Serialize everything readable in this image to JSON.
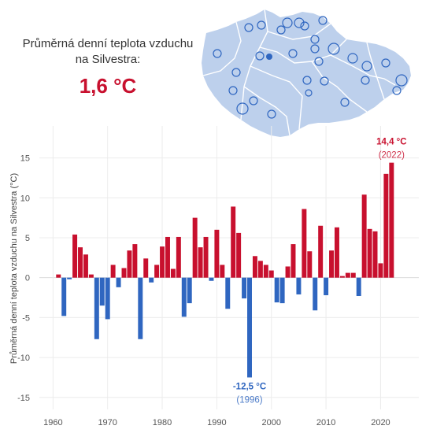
{
  "headline": {
    "line1": "Průměrná denní teplota vzduchu",
    "line2": "na Silvestra:",
    "value": "1,6 °C"
  },
  "colors": {
    "warm": "#c8102e",
    "cold": "#2f66c0",
    "highlight_warm": "#c8102e",
    "highlight_cold": "#2f66c0",
    "map_fill": "#bdd0ec",
    "map_border": "#ffffff",
    "station_stroke": "#2f66c0"
  },
  "chart_data": {
    "type": "bar",
    "ylabel": "Průměrná denní teplota vzduchu na Silvestra (°C)",
    "xlabel": "",
    "ylim": [
      -16.5,
      19
    ],
    "xlim": [
      1957.5,
      2027
    ],
    "x_ticks": [
      1960,
      1970,
      1980,
      1990,
      2000,
      2010,
      2020
    ],
    "x_tick_labels": [
      "1960",
      "1970",
      "1980",
      "1990",
      "2000",
      "2010",
      "2020"
    ],
    "y_ticks": [
      15,
      10,
      5,
      0,
      -5,
      -10,
      -15
    ],
    "y_tick_labels": [
      "15",
      "10",
      "5",
      "0",
      "-5",
      "-10",
      "-15"
    ],
    "grid": true,
    "years": [
      1961,
      1962,
      1963,
      1964,
      1965,
      1966,
      1967,
      1968,
      1969,
      1970,
      1971,
      1972,
      1973,
      1974,
      1975,
      1976,
      1977,
      1978,
      1979,
      1980,
      1981,
      1982,
      1983,
      1984,
      1985,
      1986,
      1987,
      1988,
      1989,
      1990,
      1991,
      1992,
      1993,
      1994,
      1995,
      1996,
      1997,
      1998,
      1999,
      2000,
      2001,
      2002,
      2003,
      2004,
      2005,
      2006,
      2007,
      2008,
      2009,
      2010,
      2011,
      2012,
      2013,
      2014,
      2015,
      2016,
      2017,
      2018,
      2019,
      2020,
      2021,
      2022
    ],
    "values": [
      0.4,
      -4.8,
      -0.2,
      5.4,
      3.8,
      2.9,
      0.4,
      -7.7,
      -3.5,
      -5.2,
      1.6,
      -1.2,
      1.2,
      3.4,
      4.2,
      -7.7,
      2.4,
      -0.6,
      1.6,
      3.9,
      5.1,
      1.1,
      5.1,
      -4.9,
      -3.2,
      7.5,
      3.8,
      5.1,
      -0.4,
      6.0,
      1.6,
      -3.9,
      8.9,
      5.6,
      -2.6,
      -12.5,
      2.7,
      2.1,
      1.6,
      0.9,
      -3.1,
      -3.2,
      1.4,
      4.2,
      -2.1,
      8.6,
      3.3,
      -4.1,
      6.5,
      -2.2,
      3.4,
      6.3,
      0.2,
      0.6,
      0.6,
      -2.3,
      10.4,
      6.1,
      5.8,
      1.8,
      13.0,
      14.4
    ],
    "annotations": [
      {
        "year": 2022,
        "value_label": "14,4 °C",
        "year_label": "(2022)",
        "kind": "warm"
      },
      {
        "year": 1996,
        "value_label": "-12,5 °C",
        "year_label": "(1996)",
        "kind": "cold"
      }
    ]
  },
  "map": {
    "stations": [
      {
        "name": "st1",
        "highlight": false
      },
      {
        "name": "st2",
        "highlight": false
      },
      {
        "name": "st3",
        "highlight": false
      },
      {
        "name": "st4",
        "highlight": false
      },
      {
        "name": "st5",
        "highlight": false
      },
      {
        "name": "st6",
        "highlight": false
      },
      {
        "name": "st7",
        "highlight": false
      },
      {
        "name": "st8",
        "highlight": false
      },
      {
        "name": "st9",
        "highlight": false
      },
      {
        "name": "st10",
        "highlight": false
      },
      {
        "name": "st11",
        "highlight": false
      },
      {
        "name": "st12",
        "highlight": false
      },
      {
        "name": "st13",
        "highlight": true
      },
      {
        "name": "st14",
        "highlight": false
      },
      {
        "name": "st15",
        "highlight": false
      },
      {
        "name": "st16",
        "highlight": false
      },
      {
        "name": "st17",
        "highlight": false
      },
      {
        "name": "st18",
        "highlight": false
      },
      {
        "name": "st19",
        "highlight": false
      },
      {
        "name": "st20",
        "highlight": false
      },
      {
        "name": "st21",
        "highlight": false
      },
      {
        "name": "st22",
        "highlight": false
      },
      {
        "name": "st23",
        "highlight": false
      },
      {
        "name": "st24",
        "highlight": false
      },
      {
        "name": "st25",
        "highlight": false
      },
      {
        "name": "st26",
        "highlight": false
      },
      {
        "name": "st27",
        "highlight": false
      },
      {
        "name": "st28",
        "highlight": false
      },
      {
        "name": "st29",
        "highlight": false
      },
      {
        "name": "st30",
        "highlight": false
      }
    ]
  }
}
